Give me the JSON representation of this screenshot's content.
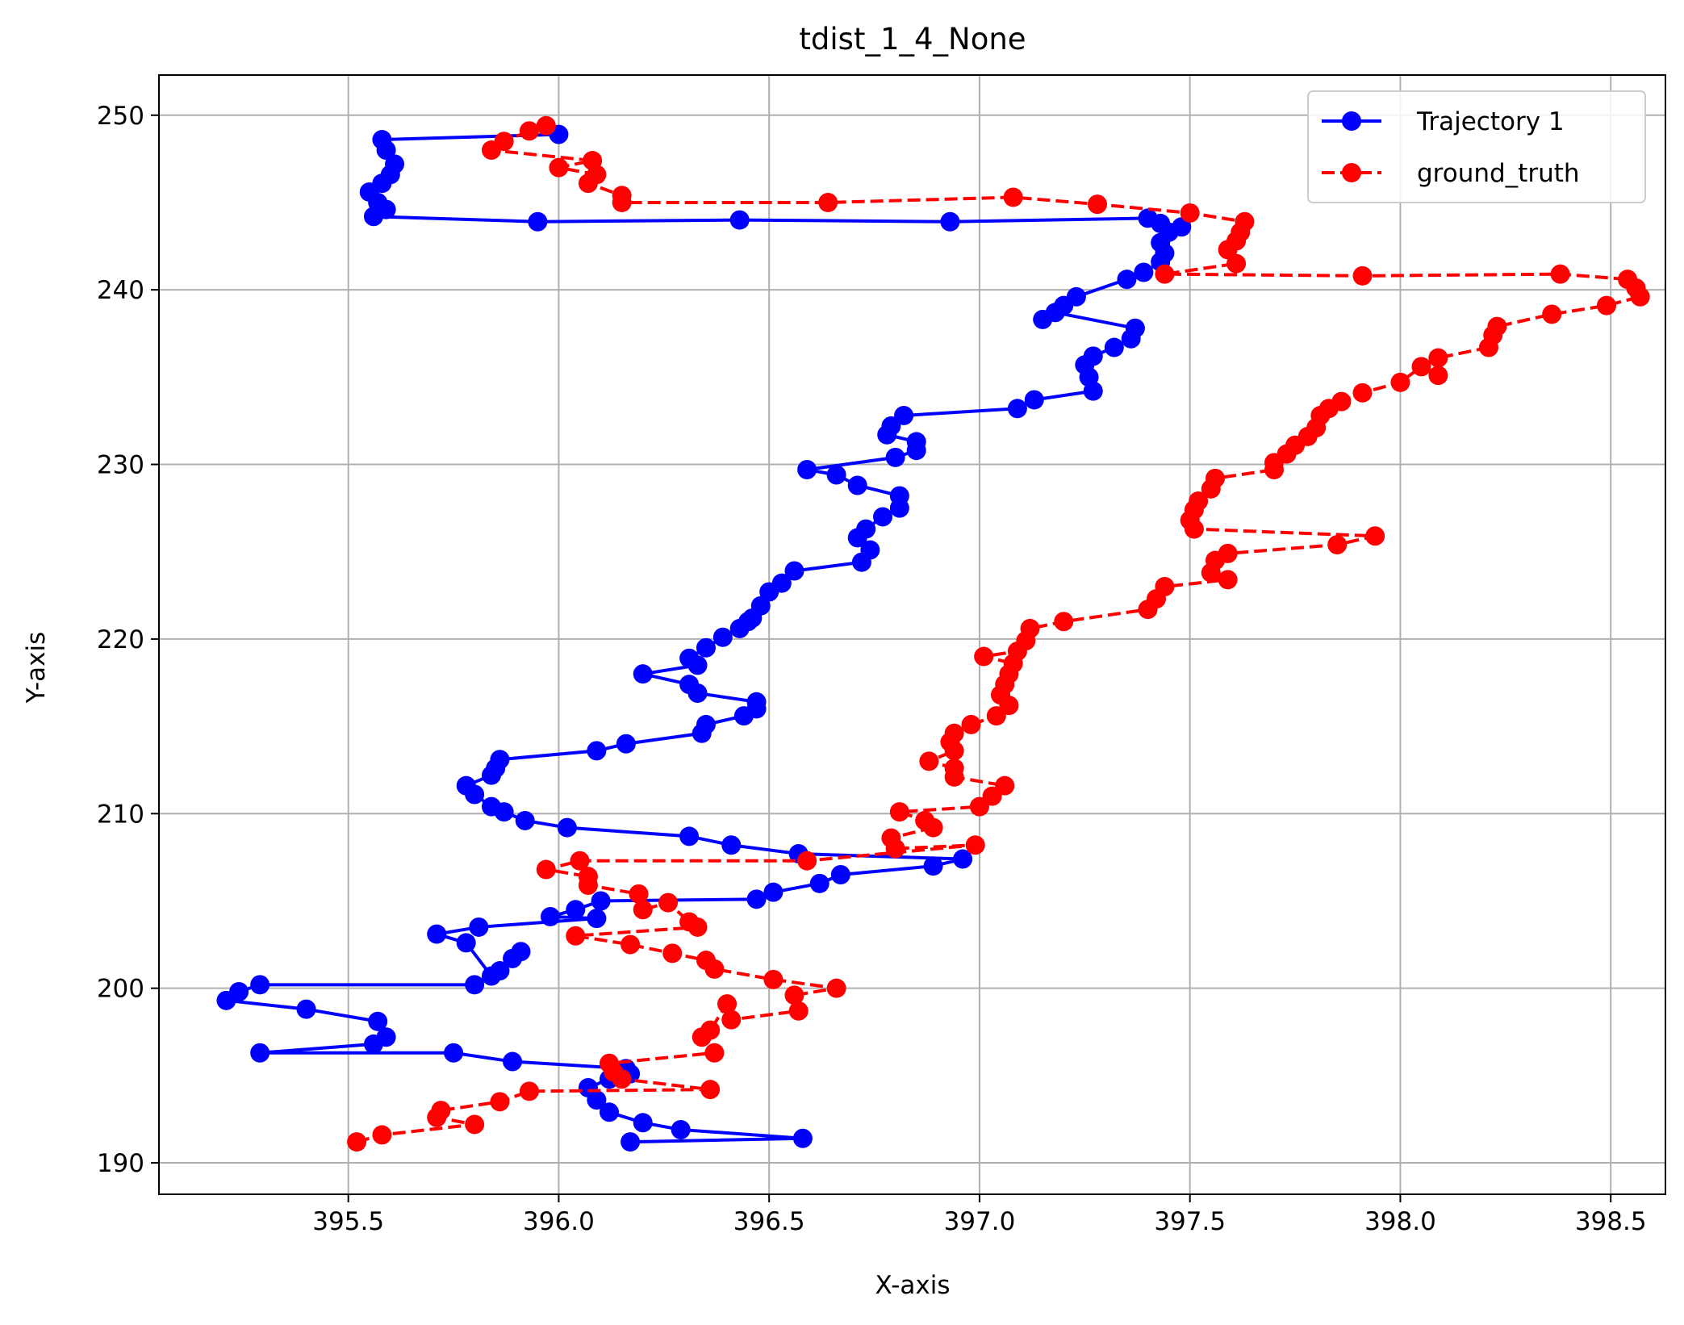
{
  "chart_data": {
    "type": "line",
    "title": "tdist_1_4_None",
    "xlabel": "X-axis",
    "ylabel": "Y-axis",
    "xlim": [
      395.05,
      398.63
    ],
    "ylim": [
      188.2,
      252.3
    ],
    "xticks": [
      395.5,
      396.0,
      396.5,
      397.0,
      397.5,
      398.0,
      398.5
    ],
    "xtick_labels": [
      "395.5",
      "396.0",
      "396.5",
      "397.0",
      "397.5",
      "398.0",
      "398.5"
    ],
    "yticks": [
      190,
      200,
      210,
      220,
      230,
      240,
      250
    ],
    "ytick_labels": [
      "190",
      "200",
      "210",
      "220",
      "230",
      "240",
      "250"
    ],
    "grid": true,
    "legend_position": "upper right",
    "series": [
      {
        "name": "Trajectory 1",
        "color": "#0000ff",
        "linestyle": "solid",
        "marker": "circle",
        "x": [
          396.0,
          395.58,
          395.59,
          395.61,
          395.6,
          395.58,
          395.55,
          395.57,
          395.59,
          395.56,
          395.95,
          396.43,
          396.93,
          397.4,
          397.43,
          397.45,
          397.48,
          397.43,
          397.44,
          397.43,
          397.39,
          397.35,
          397.23,
          397.2,
          397.15,
          397.18,
          397.37,
          397.36,
          397.32,
          397.27,
          397.25,
          397.26,
          397.27,
          397.13,
          397.09,
          396.82,
          396.79,
          396.78,
          396.85,
          396.85,
          396.8,
          396.59,
          396.66,
          396.71,
          396.81,
          396.81,
          396.77,
          396.73,
          396.71,
          396.74,
          396.72,
          396.56,
          396.53,
          396.5,
          396.48,
          396.46,
          396.45,
          396.43,
          396.39,
          396.35,
          396.31,
          396.33,
          396.2,
          396.31,
          396.33,
          396.47,
          396.47,
          396.44,
          396.35,
          396.34,
          396.16,
          396.09,
          395.86,
          395.85,
          395.84,
          395.78,
          395.8,
          395.84,
          395.87,
          395.92,
          396.02,
          396.31,
          396.41,
          396.57,
          396.96,
          396.89,
          396.67,
          396.62,
          396.51,
          396.47,
          396.1,
          396.04,
          395.98,
          396.09,
          395.81,
          395.71,
          395.78,
          395.84,
          395.86,
          395.89,
          395.91,
          395.8,
          395.29,
          395.24,
          395.21,
          395.4,
          395.57,
          395.59,
          395.56,
          395.29,
          395.75,
          395.89,
          396.16,
          396.17,
          396.12,
          396.07,
          396.09,
          396.12,
          396.2,
          396.29,
          396.58,
          396.17
        ],
        "y": [
          248.9,
          248.6,
          248.0,
          247.2,
          246.6,
          246.1,
          245.6,
          245.0,
          244.6,
          244.2,
          243.9,
          244.0,
          243.9,
          244.1,
          243.8,
          243.3,
          243.6,
          242.7,
          242.1,
          241.6,
          241.0,
          240.6,
          239.6,
          239.1,
          238.3,
          238.7,
          237.8,
          237.2,
          236.7,
          236.2,
          235.7,
          235.0,
          234.2,
          233.7,
          233.2,
          232.8,
          232.2,
          231.7,
          231.3,
          230.8,
          230.4,
          229.7,
          229.4,
          228.8,
          228.2,
          227.5,
          227.0,
          226.3,
          225.8,
          225.1,
          224.4,
          223.9,
          223.2,
          222.7,
          221.9,
          221.2,
          221.0,
          220.6,
          220.1,
          219.5,
          218.9,
          218.5,
          218.0,
          217.4,
          216.9,
          216.4,
          216.0,
          215.6,
          215.1,
          214.6,
          214.0,
          213.6,
          213.1,
          212.6,
          212.2,
          211.6,
          211.1,
          210.4,
          210.1,
          209.6,
          209.2,
          208.7,
          208.2,
          207.7,
          207.4,
          207.0,
          206.5,
          206.0,
          205.5,
          205.1,
          205.0,
          204.5,
          204.1,
          204.0,
          203.5,
          203.1,
          202.6,
          200.7,
          201.0,
          201.7,
          202.1,
          200.2,
          200.2,
          199.8,
          199.3,
          198.8,
          198.1,
          197.2,
          196.8,
          196.3,
          196.3,
          195.8,
          195.4,
          195.1,
          194.8,
          194.3,
          193.6,
          192.9,
          192.3,
          191.9,
          191.4,
          191.2
        ]
      },
      {
        "name": "ground_truth",
        "color": "#ff0000",
        "linestyle": "dashed",
        "marker": "circle",
        "x": [
          395.97,
          395.93,
          395.87,
          395.84,
          396.08,
          396.0,
          396.09,
          396.07,
          396.15,
          396.15,
          396.64,
          397.08,
          397.28,
          397.5,
          397.63,
          397.62,
          397.61,
          397.59,
          397.61,
          397.44,
          397.91,
          398.38,
          398.54,
          398.56,
          398.57,
          398.49,
          398.36,
          398.23,
          398.22,
          398.21,
          398.09,
          398.09,
          398.05,
          398.0,
          397.91,
          397.86,
          397.83,
          397.81,
          397.8,
          397.78,
          397.75,
          397.73,
          397.7,
          397.7,
          397.56,
          397.55,
          397.52,
          397.51,
          397.5,
          397.51,
          397.94,
          397.85,
          397.59,
          397.56,
          397.55,
          397.59,
          397.44,
          397.42,
          397.4,
          397.2,
          397.12,
          397.11,
          397.09,
          397.01,
          397.08,
          397.07,
          397.06,
          397.05,
          397.07,
          397.04,
          396.98,
          396.94,
          396.93,
          396.94,
          396.88,
          396.94,
          396.94,
          397.06,
          397.03,
          397.0,
          396.81,
          396.87,
          396.89,
          396.79,
          396.8,
          396.99,
          396.59,
          396.05,
          395.97,
          396.07,
          396.07,
          396.19,
          396.2,
          396.26,
          396.31,
          396.33,
          396.04,
          396.17,
          396.27,
          396.35,
          396.37,
          396.51,
          396.66,
          396.56,
          396.57,
          396.41,
          396.4,
          396.36,
          396.34,
          396.37,
          396.12,
          396.13,
          396.15,
          396.36,
          395.93,
          395.86,
          395.72,
          395.71,
          395.8,
          395.58,
          395.52
        ],
        "y": [
          249.4,
          249.1,
          248.5,
          248.0,
          247.4,
          247.0,
          246.6,
          246.1,
          245.4,
          245.0,
          245.0,
          245.3,
          244.9,
          244.4,
          243.9,
          243.3,
          242.8,
          242.3,
          241.5,
          240.9,
          240.8,
          240.9,
          240.6,
          240.1,
          239.6,
          239.1,
          238.6,
          237.9,
          237.4,
          236.7,
          236.1,
          235.1,
          235.6,
          234.7,
          234.1,
          233.6,
          233.2,
          232.8,
          232.1,
          231.6,
          231.1,
          230.6,
          230.1,
          229.7,
          229.2,
          228.6,
          227.9,
          227.4,
          226.8,
          226.3,
          225.9,
          225.4,
          224.9,
          224.5,
          223.8,
          223.4,
          223.0,
          222.3,
          221.7,
          221.0,
          220.6,
          219.9,
          219.3,
          219.0,
          218.6,
          218.0,
          217.4,
          216.8,
          216.2,
          215.6,
          215.1,
          214.6,
          214.1,
          213.6,
          213.0,
          212.6,
          212.1,
          211.6,
          211.0,
          210.4,
          210.1,
          209.6,
          209.2,
          208.6,
          208.0,
          208.2,
          207.3,
          207.3,
          206.8,
          206.4,
          205.9,
          205.4,
          204.5,
          204.9,
          203.8,
          203.5,
          203.0,
          202.5,
          202.0,
          201.6,
          201.1,
          200.5,
          200.0,
          199.6,
          198.7,
          198.2,
          199.1,
          197.6,
          197.2,
          196.3,
          195.7,
          195.2,
          194.8,
          194.2,
          194.1,
          193.5,
          193.0,
          192.6,
          192.2,
          191.6,
          191.2
        ]
      }
    ]
  }
}
